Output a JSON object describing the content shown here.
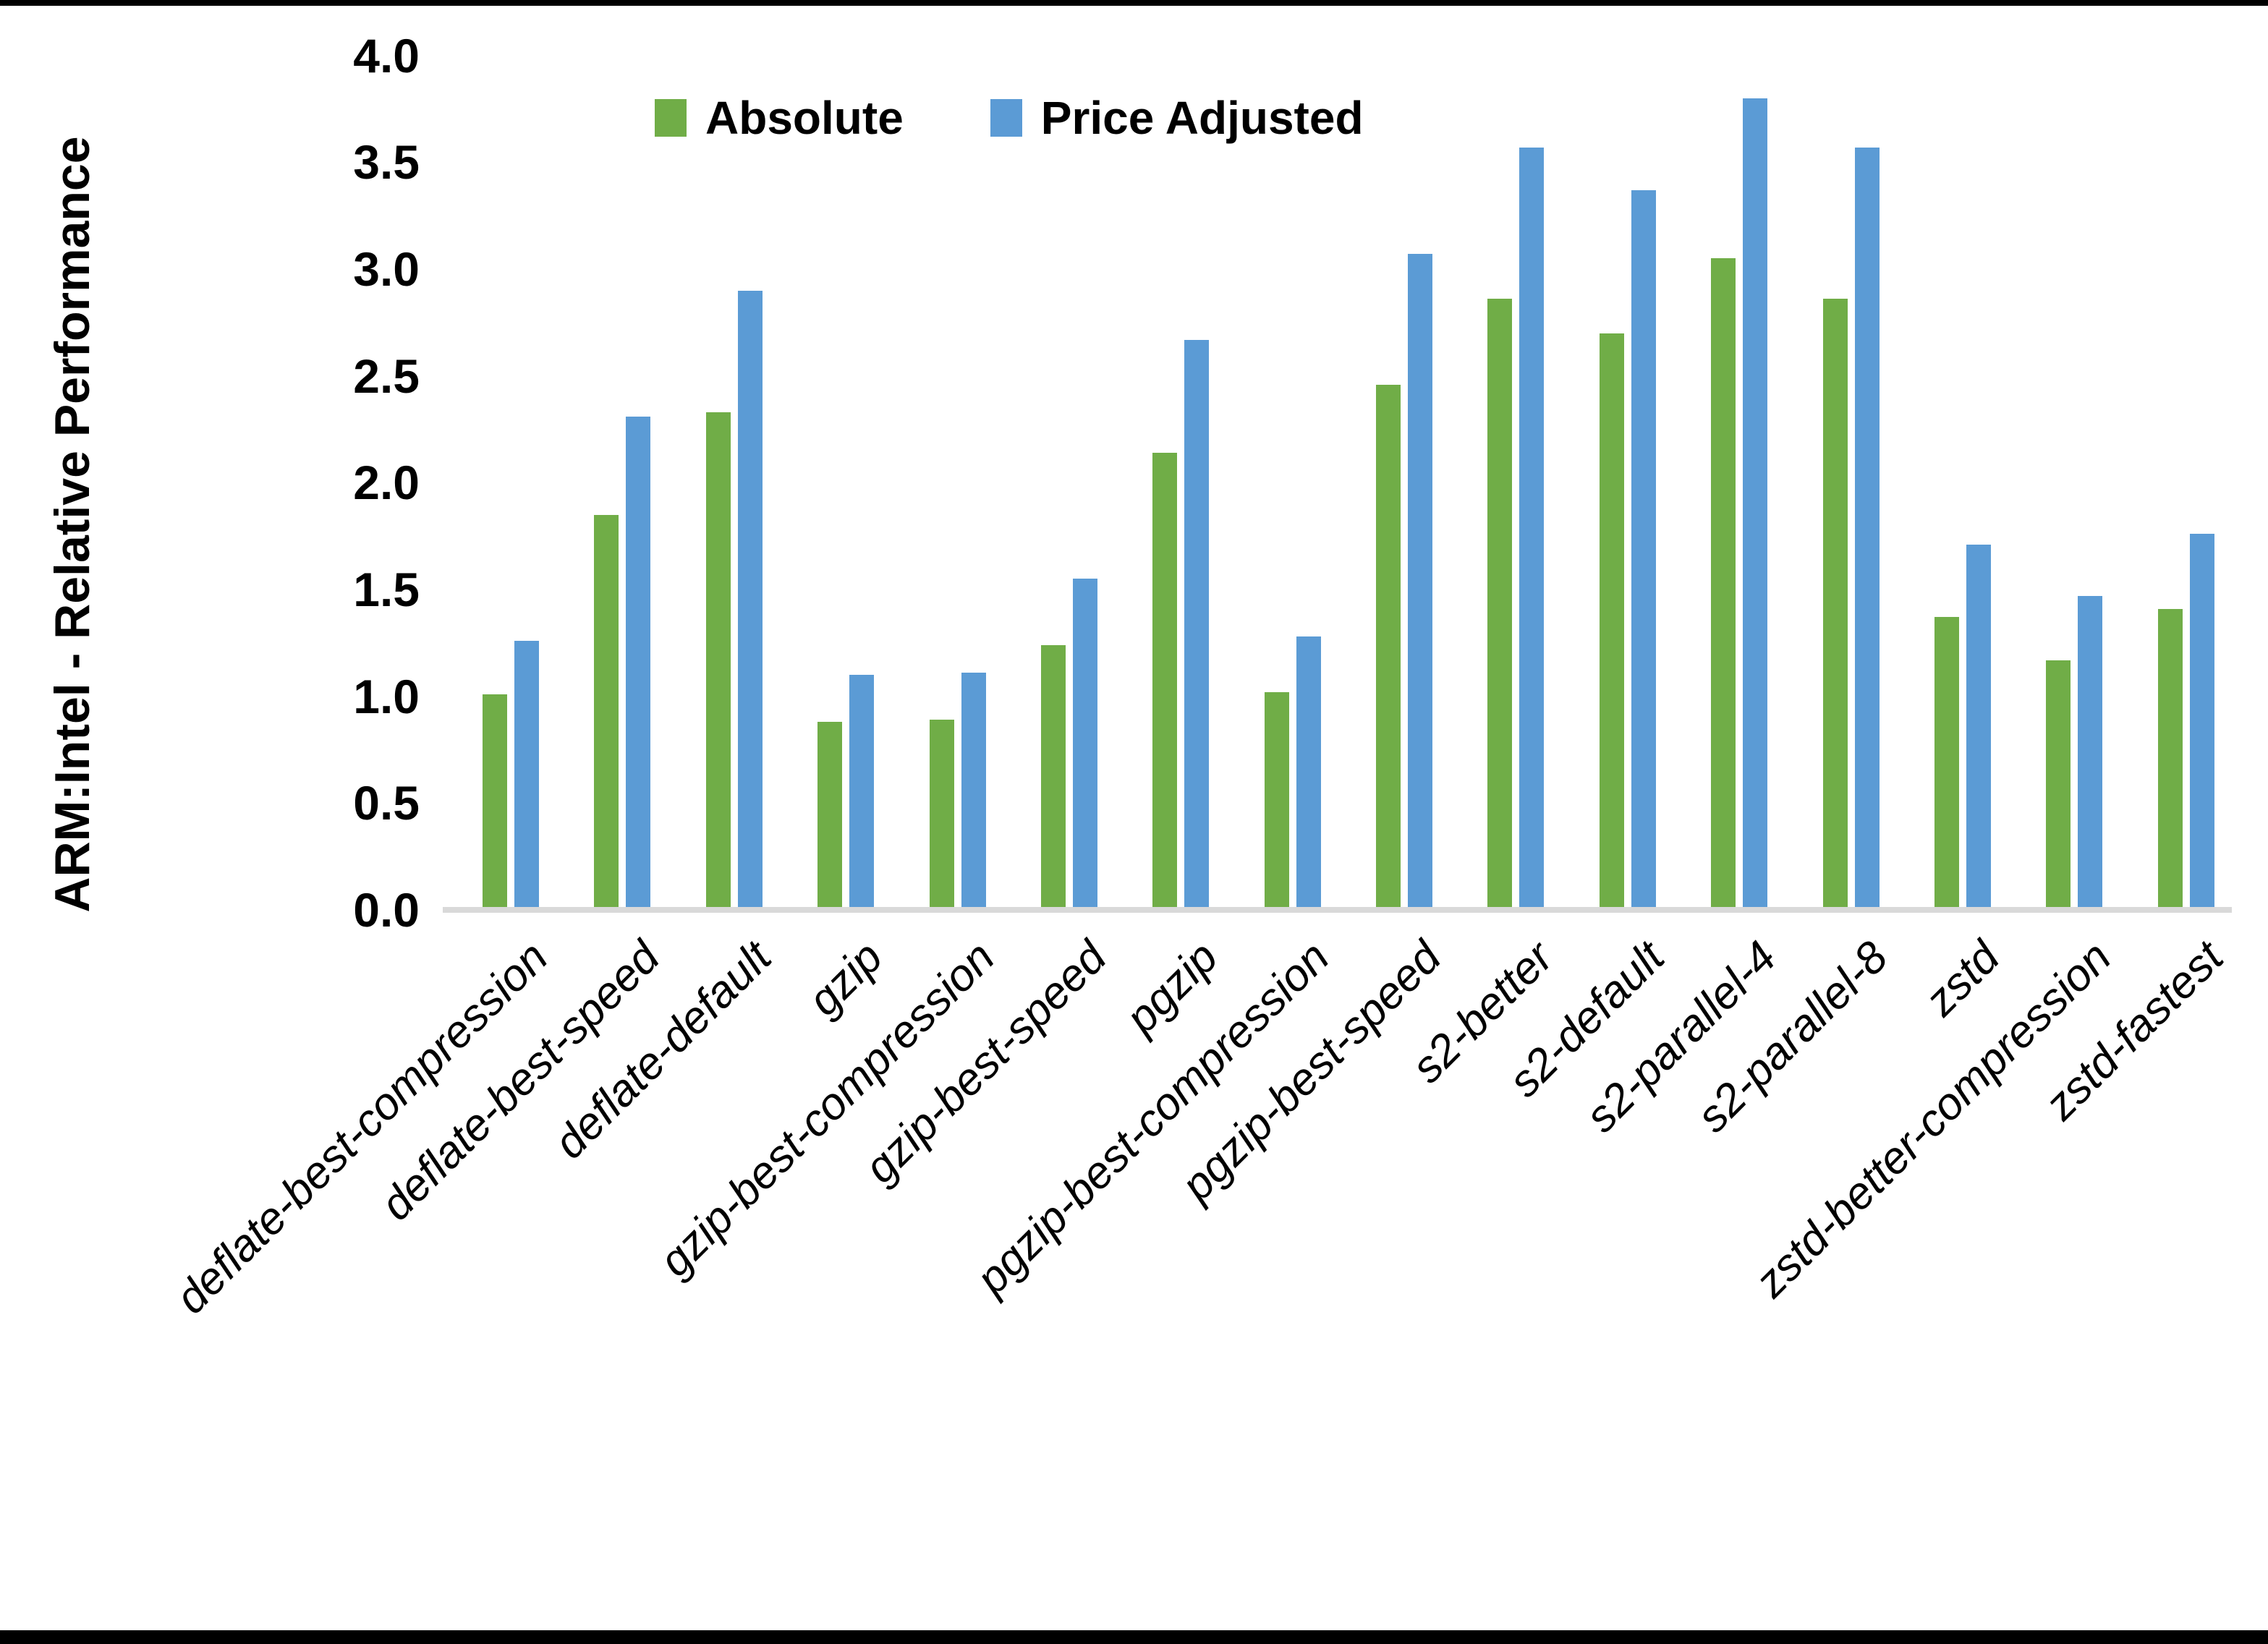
{
  "chart_data": {
    "type": "bar",
    "title": "",
    "ylabel": "ARM:Intel - Relative Performance",
    "xlabel": "",
    "categories": [
      "deflate-best-compression",
      "deflate-best-speed",
      "deflate-default",
      "gzip",
      "gzip-best-compression",
      "gzip-best-speed",
      "pgzip",
      "pgzip-best-compression",
      "pgzip-best-speed",
      "s2-better",
      "s2-default",
      "s2-parallel-4",
      "s2-parallel-8",
      "zstd",
      "zstd-better-compression",
      "zstd-fastest"
    ],
    "series": [
      {
        "name": "Absolute",
        "color": "#70AD47",
        "values": [
          1.01,
          1.85,
          2.33,
          0.88,
          0.89,
          1.24,
          2.14,
          1.02,
          2.46,
          2.86,
          2.7,
          3.05,
          2.86,
          1.37,
          1.17,
          1.41
        ]
      },
      {
        "name": "Price Adjusted",
        "color": "#5B9BD5",
        "values": [
          1.26,
          2.31,
          2.9,
          1.1,
          1.11,
          1.55,
          2.67,
          1.28,
          3.07,
          3.57,
          3.37,
          3.8,
          3.57,
          1.71,
          1.47,
          1.76
        ]
      }
    ],
    "ylim": [
      0.0,
      4.0
    ],
    "ytick_step": 0.5,
    "ytick_labels": [
      "0.0",
      "0.5",
      "1.0",
      "1.5",
      "2.0",
      "2.5",
      "3.0",
      "3.5",
      "4.0"
    ],
    "legend_position": "top",
    "grid": false,
    "axis_line_color": "#D9D9D9"
  }
}
